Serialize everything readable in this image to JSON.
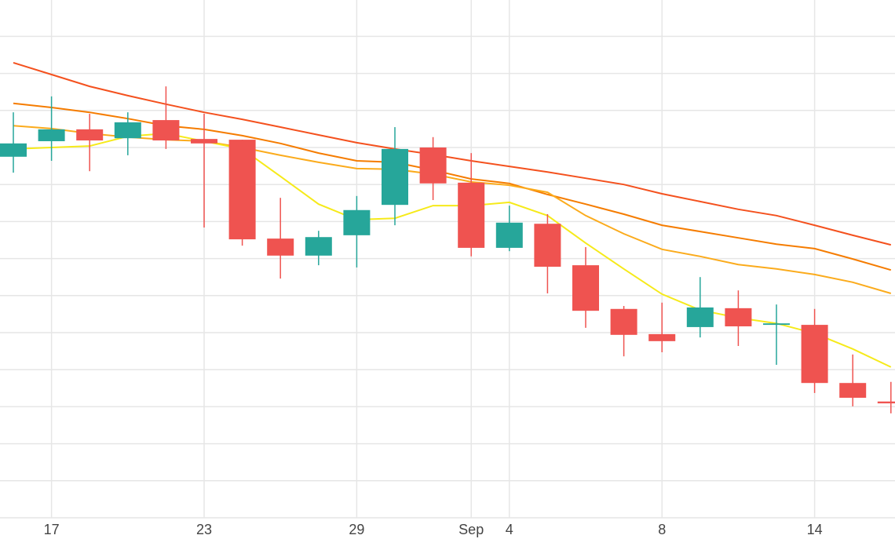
{
  "chart_data": {
    "type": "candlestick",
    "categories": [
      null,
      "17",
      null,
      null,
      null,
      "23",
      null,
      null,
      null,
      "29",
      null,
      null,
      "Sep",
      "4",
      null,
      null,
      null,
      "8",
      null,
      null,
      null,
      "14",
      null,
      null
    ],
    "ylim": [
      0,
      14
    ],
    "yticks": [
      0,
      1,
      2,
      3,
      4,
      5,
      6,
      7,
      8,
      9,
      10,
      11,
      12,
      13
    ],
    "grid": true,
    "grid_color": "#e6e6e6",
    "series": [
      {
        "type": "candlestick",
        "up_color": "#26a69a",
        "down_color": "#ef5350",
        "open": [
          9.75,
          10.17,
          10.49,
          10.25,
          10.74,
          10.23,
          10.21,
          7.54,
          7.08,
          7.63,
          8.45,
          10.0,
          9.05,
          7.29,
          7.94,
          6.82,
          5.64,
          4.96,
          5.15,
          5.66,
          5.21,
          5.21,
          3.64,
          3.14
        ],
        "high": [
          10.95,
          11.38,
          10.91,
          10.95,
          11.65,
          10.91,
          10.21,
          8.64,
          7.75,
          8.69,
          10.55,
          10.28,
          9.85,
          8.43,
          8.2,
          7.31,
          5.72,
          5.81,
          6.5,
          6.14,
          5.76,
          5.64,
          4.41,
          3.67
        ],
        "low": [
          9.32,
          9.64,
          9.36,
          9.79,
          9.96,
          7.84,
          7.35,
          6.46,
          6.82,
          6.76,
          7.9,
          8.58,
          7.06,
          7.2,
          6.06,
          5.13,
          4.36,
          4.47,
          4.87,
          4.64,
          4.13,
          3.37,
          3.01,
          2.82
        ],
        "close": [
          10.11,
          10.49,
          10.19,
          10.68,
          10.19,
          10.11,
          7.52,
          7.08,
          7.58,
          8.31,
          9.96,
          9.03,
          7.29,
          7.97,
          6.78,
          5.59,
          4.94,
          4.77,
          5.68,
          5.17,
          5.25,
          3.64,
          3.24,
          3.09
        ]
      },
      {
        "type": "line",
        "color": "#f4511e",
        "values": [
          12.29,
          11.97,
          11.65,
          11.4,
          11.17,
          10.95,
          10.76,
          10.55,
          10.34,
          10.13,
          9.96,
          9.81,
          9.64,
          9.49,
          9.34,
          9.17,
          9.0,
          8.75,
          8.54,
          8.33,
          8.16,
          7.9,
          7.63,
          7.37
        ]
      },
      {
        "type": "line",
        "color": "#f57c00",
        "values": [
          11.19,
          11.08,
          10.95,
          10.78,
          10.59,
          10.49,
          10.32,
          10.11,
          9.85,
          9.64,
          9.6,
          9.39,
          9.15,
          9.03,
          8.73,
          8.47,
          8.2,
          7.9,
          7.73,
          7.56,
          7.39,
          7.27,
          6.99,
          6.69
        ]
      },
      {
        "type": "line",
        "color": "#fbab1c",
        "values": [
          10.59,
          10.51,
          10.38,
          10.28,
          10.21,
          10.17,
          10.0,
          9.79,
          9.6,
          9.43,
          9.41,
          9.28,
          9.07,
          8.98,
          8.79,
          8.16,
          7.67,
          7.25,
          7.06,
          6.84,
          6.72,
          6.57,
          6.36,
          6.06
        ]
      },
      {
        "type": "line",
        "color": "#f6ea1a",
        "values": [
          9.96,
          10.0,
          10.04,
          10.3,
          10.38,
          10.17,
          9.96,
          9.22,
          8.47,
          8.05,
          8.09,
          8.43,
          8.43,
          8.52,
          8.16,
          7.42,
          6.72,
          6.04,
          5.61,
          5.4,
          5.25,
          4.98,
          4.56,
          4.07
        ]
      }
    ]
  }
}
